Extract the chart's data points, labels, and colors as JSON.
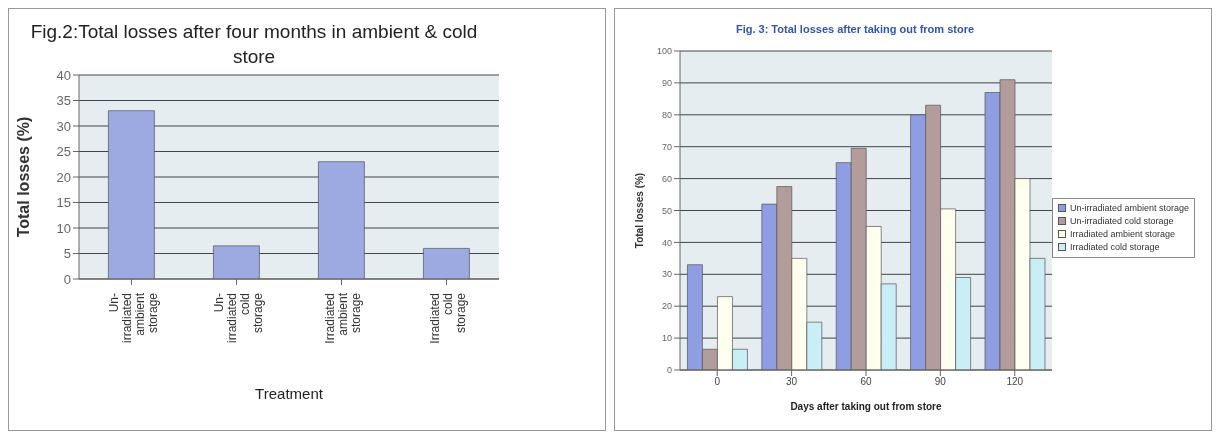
{
  "chart_data": [
    {
      "type": "bar",
      "title": "Fig.2:Total losses after four months in ambient & cold store",
      "xlabel": "Treatment",
      "ylabel": "Total losses (%)",
      "categories": [
        "Un-irradiated ambient storage",
        "Un-irradiated cold storage",
        "Irradiated ambient storage",
        "Irradiated cold storage"
      ],
      "values": [
        33,
        6.5,
        23,
        6
      ],
      "color": "#9daae2",
      "ylim": [
        0,
        40
      ],
      "yticks": [
        0,
        5,
        10,
        15,
        20,
        25,
        30,
        35,
        40
      ],
      "grid": "y",
      "legend": false
    },
    {
      "type": "bar",
      "title": "Fig. 3: Total losses after taking out from store",
      "xlabel": "Days after taking out from store",
      "ylabel": "Total losses (%)",
      "categories": [
        "0",
        "30",
        "60",
        "90",
        "120"
      ],
      "series": [
        {
          "name": "Un-irradiated ambient storage",
          "color": "#8f9ee2",
          "values": [
            33,
            52,
            65,
            80,
            87
          ]
        },
        {
          "name": "Un-irradiated cold storage",
          "color": "#b39c9c",
          "values": [
            6.5,
            57.5,
            69.5,
            83,
            91
          ]
        },
        {
          "name": "Irradiated ambient storage",
          "color": "#fffff0",
          "values": [
            23,
            35,
            45,
            50.5,
            60
          ]
        },
        {
          "name": "Irradiated cold storage",
          "color": "#c9eef6",
          "values": [
            6.5,
            15,
            27,
            29,
            35
          ]
        }
      ],
      "ylim": [
        0,
        100
      ],
      "yticks": [
        0,
        10,
        20,
        30,
        40,
        50,
        60,
        70,
        80,
        90,
        100
      ],
      "grid": "y",
      "legend": "right"
    }
  ]
}
